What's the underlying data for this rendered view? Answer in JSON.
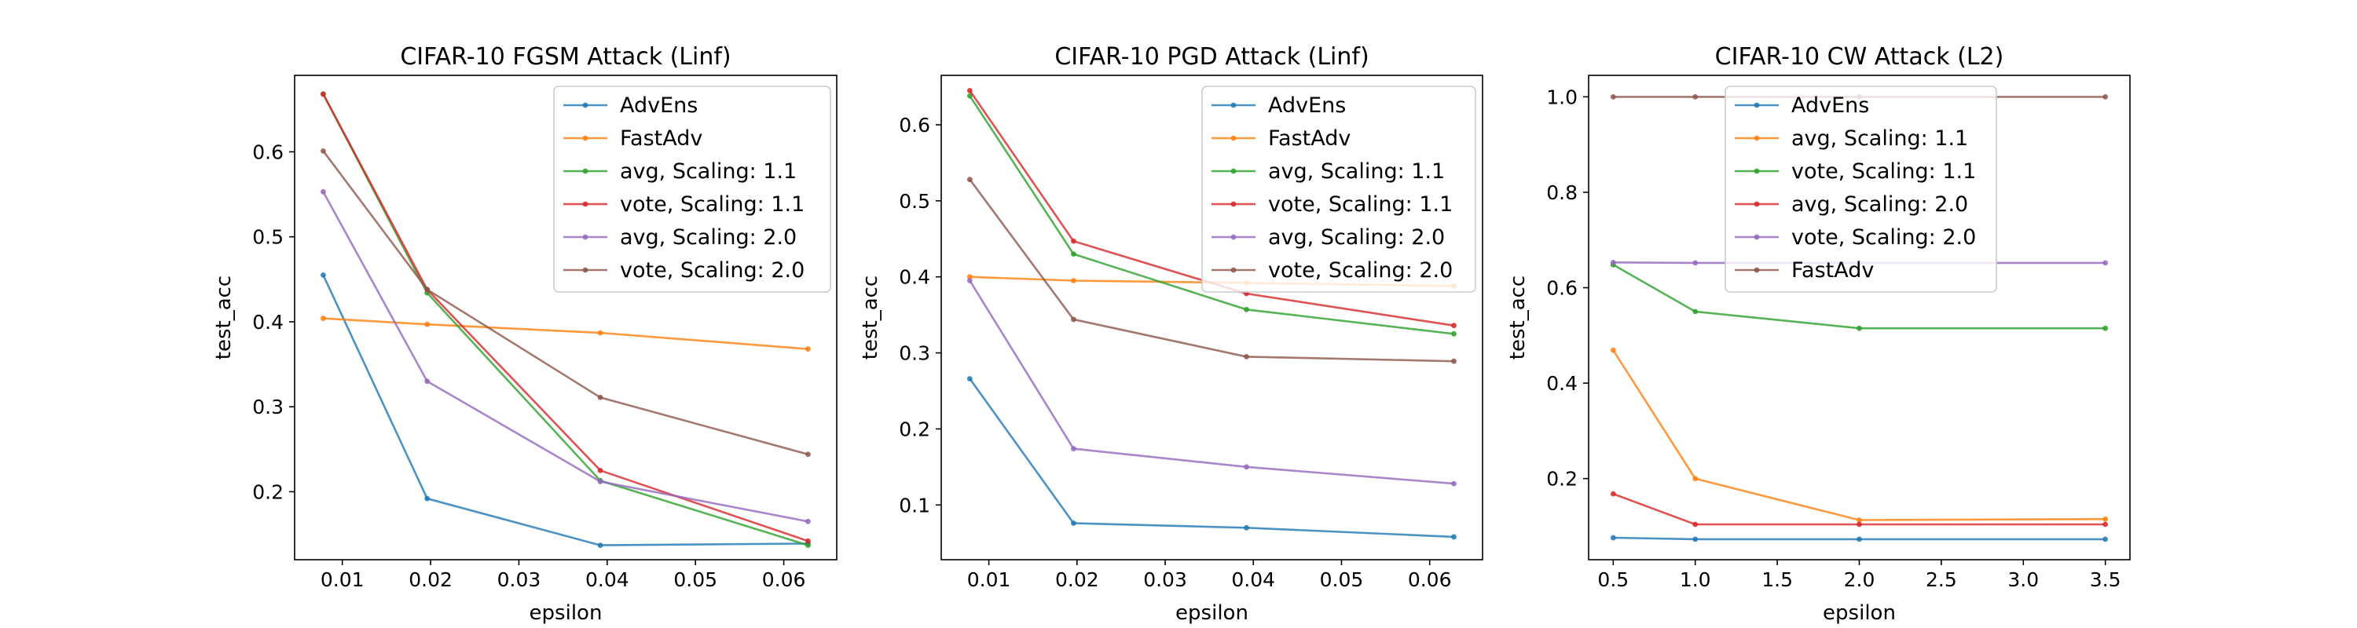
{
  "colors": {
    "blue": "#1f77b4",
    "orange": "#ff7f0e",
    "green": "#2ca02c",
    "red": "#d62728",
    "purple": "#9467bd",
    "brown": "#8c564b"
  },
  "chart_data": [
    {
      "type": "line",
      "title": "CIFAR-10 FGSM Attack (Linf)",
      "xlabel": "epsilon",
      "ylabel": "test_acc",
      "x": [
        0.00784,
        0.01961,
        0.03922,
        0.06275
      ],
      "xlim": [
        0.0046,
        0.066
      ],
      "ylim": [
        0.12,
        0.69
      ],
      "xticks": [
        0.01,
        0.02,
        0.03,
        0.04,
        0.05,
        0.06
      ],
      "xtick_labels": [
        "0.01",
        "0.02",
        "0.03",
        "0.04",
        "0.05",
        "0.06"
      ],
      "yticks": [
        0.2,
        0.3,
        0.4,
        0.5,
        0.6
      ],
      "ytick_labels": [
        "0.2",
        "0.3",
        "0.4",
        "0.5",
        "0.6"
      ],
      "legend_position": "top-right",
      "series": [
        {
          "name": "AdvEns",
          "color": "blue",
          "values": [
            0.455,
            0.192,
            0.137,
            0.139
          ]
        },
        {
          "name": "FastAdv",
          "color": "orange",
          "values": [
            0.404,
            0.397,
            0.387,
            0.368
          ]
        },
        {
          "name": "avg, Scaling: 1.1",
          "color": "green",
          "values": [
            0.668,
            0.434,
            0.213,
            0.137
          ]
        },
        {
          "name": "vote, Scaling: 1.1",
          "color": "red",
          "values": [
            0.668,
            0.438,
            0.225,
            0.142
          ]
        },
        {
          "name": "avg, Scaling: 2.0",
          "color": "purple",
          "values": [
            0.553,
            0.33,
            0.212,
            0.165
          ]
        },
        {
          "name": "vote, Scaling: 2.0",
          "color": "brown",
          "values": [
            0.601,
            0.438,
            0.311,
            0.244
          ]
        }
      ]
    },
    {
      "type": "line",
      "title": "CIFAR-10 PGD Attack (Linf)",
      "xlabel": "epsilon",
      "ylabel": "test_acc",
      "x": [
        0.00784,
        0.01961,
        0.03922,
        0.06275
      ],
      "xlim": [
        0.0046,
        0.066
      ],
      "ylim": [
        0.028,
        0.665
      ],
      "xticks": [
        0.01,
        0.02,
        0.03,
        0.04,
        0.05,
        0.06
      ],
      "xtick_labels": [
        "0.01",
        "0.02",
        "0.03",
        "0.04",
        "0.05",
        "0.06"
      ],
      "yticks": [
        0.1,
        0.2,
        0.3,
        0.4,
        0.5,
        0.6
      ],
      "ytick_labels": [
        "0.1",
        "0.2",
        "0.3",
        "0.4",
        "0.5",
        "0.6"
      ],
      "legend_position": "top-right",
      "series": [
        {
          "name": "AdvEns",
          "color": "blue",
          "values": [
            0.266,
            0.076,
            0.07,
            0.058
          ]
        },
        {
          "name": "FastAdv",
          "color": "orange",
          "values": [
            0.4,
            0.395,
            0.392,
            0.388
          ]
        },
        {
          "name": "avg, Scaling: 1.1",
          "color": "green",
          "values": [
            0.638,
            0.43,
            0.357,
            0.325
          ]
        },
        {
          "name": "vote, Scaling: 1.1",
          "color": "red",
          "values": [
            0.645,
            0.447,
            0.378,
            0.336
          ]
        },
        {
          "name": "avg, Scaling: 2.0",
          "color": "purple",
          "values": [
            0.395,
            0.174,
            0.15,
            0.128
          ]
        },
        {
          "name": "vote, Scaling: 2.0",
          "color": "brown",
          "values": [
            0.528,
            0.344,
            0.295,
            0.289
          ]
        }
      ]
    },
    {
      "type": "line",
      "title": "CIFAR-10 CW Attack (L2)",
      "xlabel": "epsilon",
      "ylabel": "test_acc",
      "x": [
        0.5,
        1.0,
        2.0,
        3.5
      ],
      "xlim": [
        0.35,
        3.65
      ],
      "ylim": [
        0.03,
        1.045
      ],
      "xticks": [
        0.5,
        1.0,
        1.5,
        2.0,
        2.5,
        3.0,
        3.5
      ],
      "xtick_labels": [
        "0.5",
        "1.0",
        "1.5",
        "2.0",
        "2.5",
        "3.0",
        "3.5"
      ],
      "yticks": [
        0.2,
        0.4,
        0.6,
        0.8,
        1.0
      ],
      "ytick_labels": [
        "0.2",
        "0.4",
        "0.6",
        "0.8",
        "1.0"
      ],
      "legend_position": "top-center",
      "series": [
        {
          "name": "AdvEns",
          "color": "blue",
          "values": [
            0.076,
            0.073,
            0.073,
            0.073
          ]
        },
        {
          "name": "avg, Scaling: 1.1",
          "color": "orange",
          "values": [
            0.469,
            0.2,
            0.113,
            0.115
          ]
        },
        {
          "name": "vote, Scaling: 1.1",
          "color": "green",
          "values": [
            0.648,
            0.55,
            0.515,
            0.515
          ]
        },
        {
          "name": "avg, Scaling: 2.0",
          "color": "red",
          "values": [
            0.168,
            0.104,
            0.104,
            0.104
          ]
        },
        {
          "name": "vote, Scaling: 2.0",
          "color": "purple",
          "values": [
            0.653,
            0.652,
            0.652,
            0.652
          ]
        },
        {
          "name": "FastAdv",
          "color": "brown",
          "values": [
            1.0,
            1.0,
            1.0,
            1.0
          ]
        }
      ]
    }
  ]
}
